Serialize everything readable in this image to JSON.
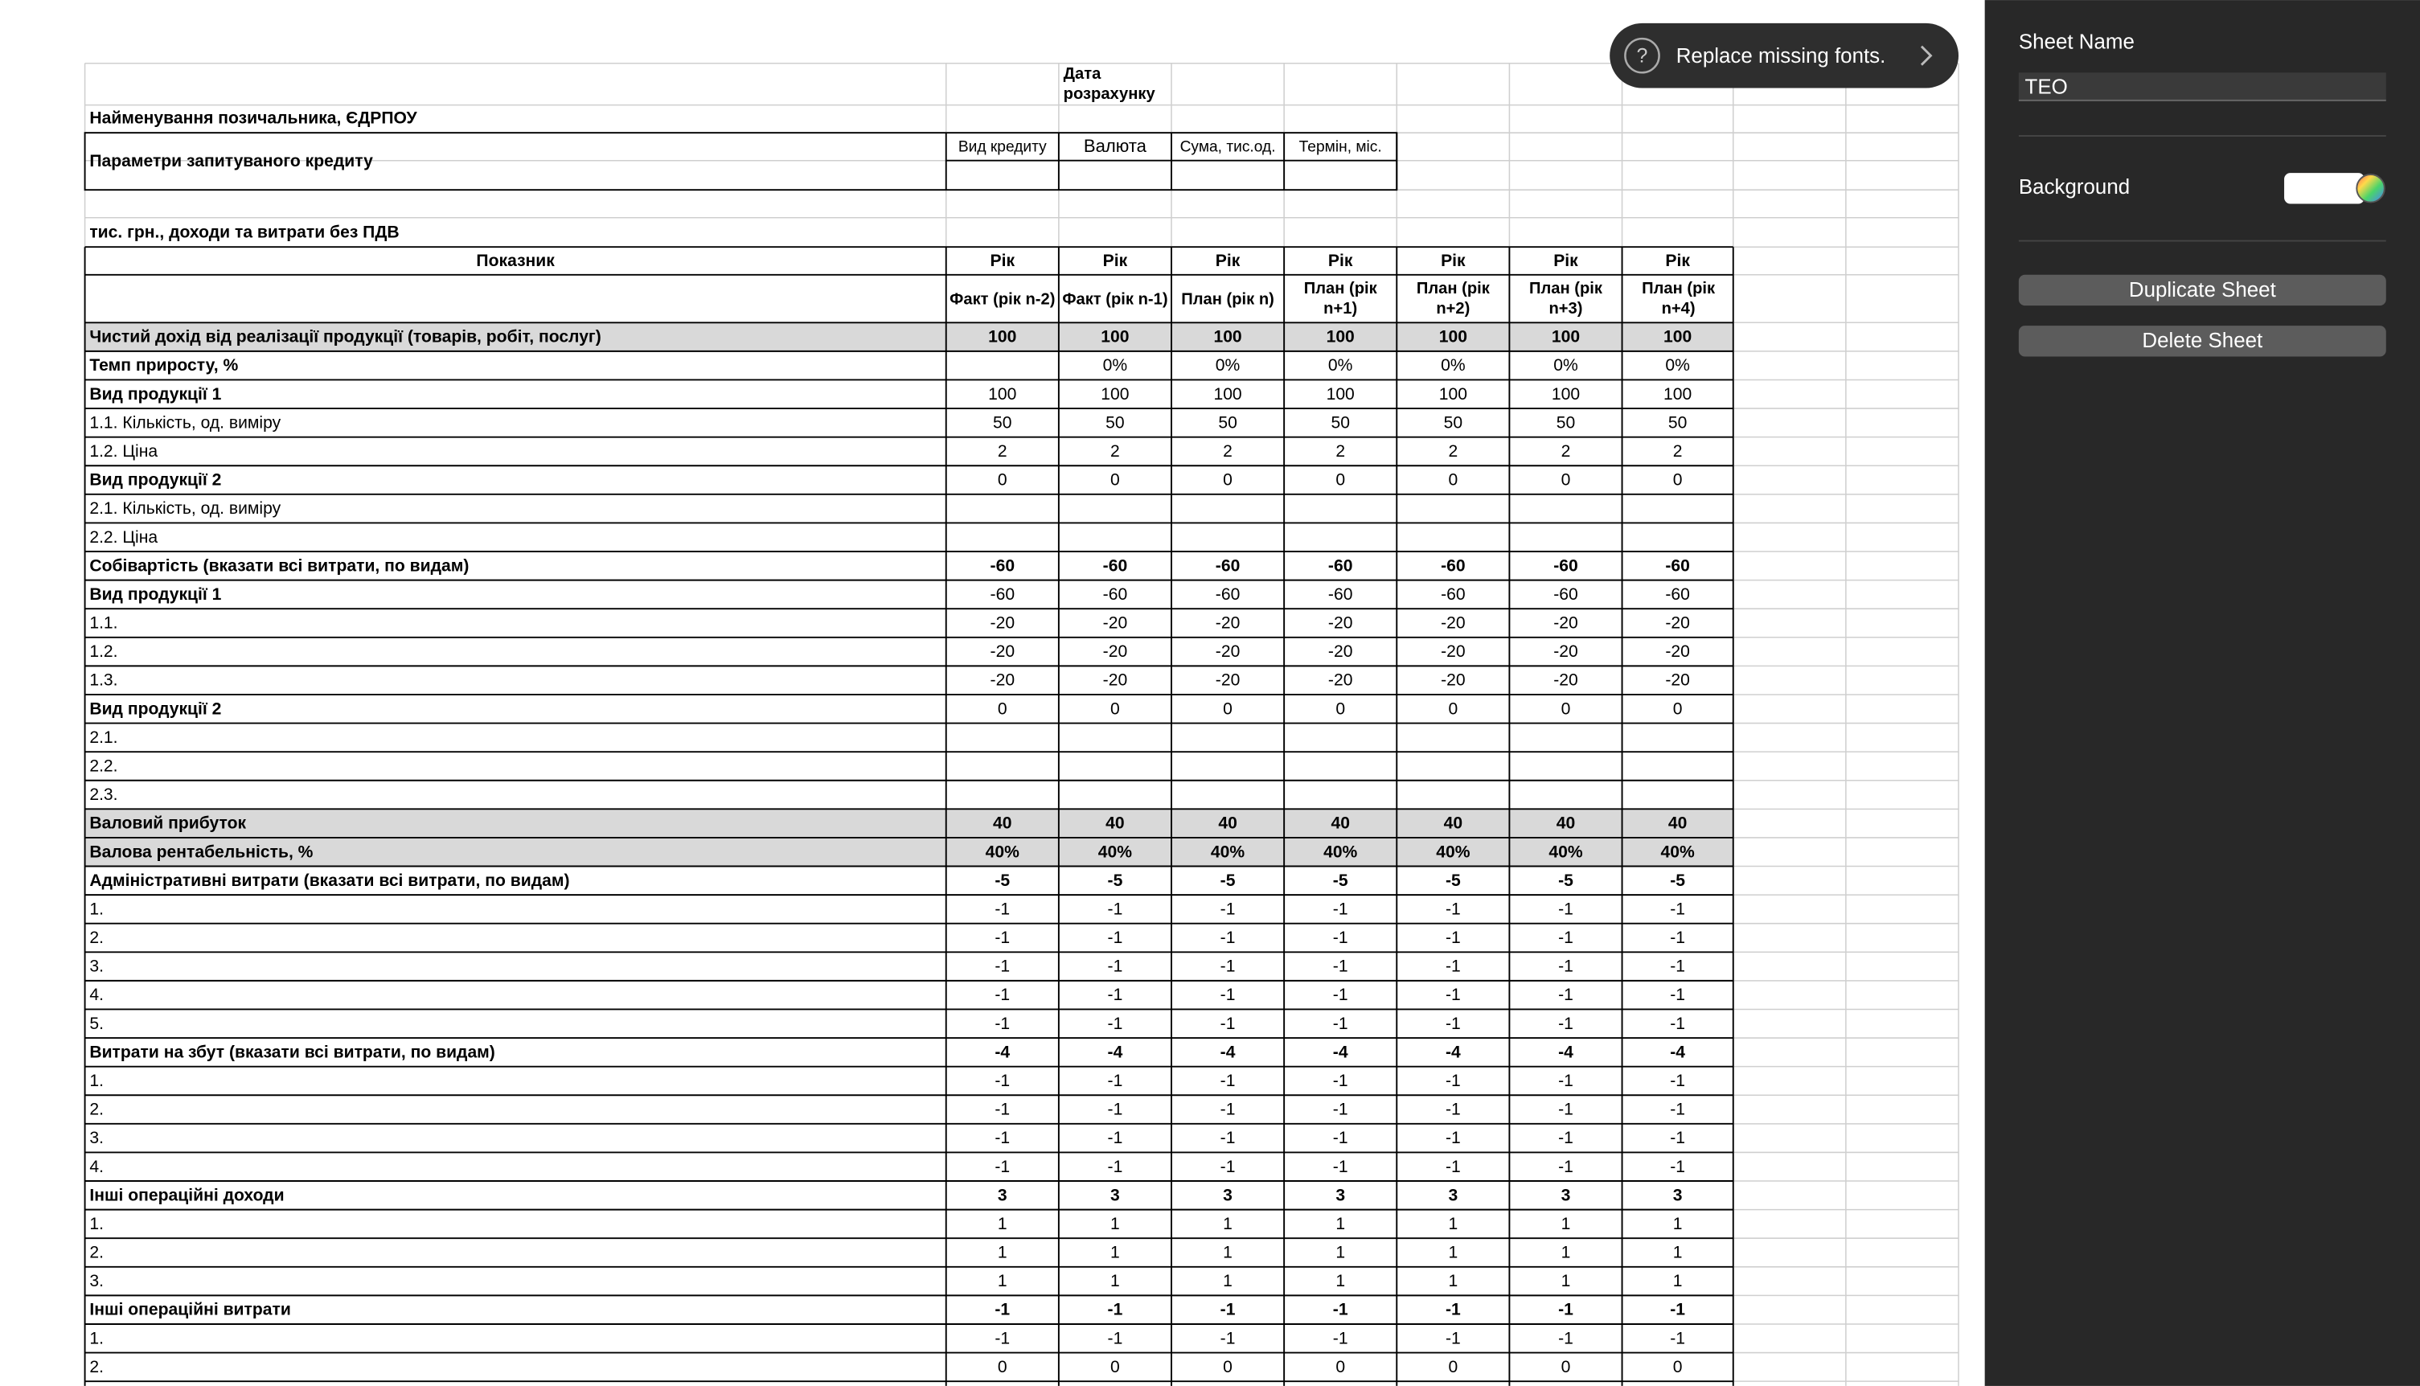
{
  "sheet": {
    "date_label": "Дата розрахунку",
    "borrower_label": "Найменування позичальника, ЄДРПОУ",
    "credit_label": "Параметри запитуваного кредиту",
    "credit_headers": [
      "Вид кредиту",
      "Валюта",
      "Сума, тис.од.",
      "Термін, міс."
    ],
    "units_note": "тис. грн., доходи та витрати без ПДВ",
    "indicator_header": "Показник",
    "year_headers": [
      "Рік",
      "Рік",
      "Рік",
      "Рік",
      "Рік",
      "Рік",
      "Рік"
    ],
    "period_headers": [
      "Факт (рік n-2)",
      "Факт (рік n-1)",
      "План (рік n)",
      "План (рік n+1)",
      "План (рік n+2)",
      "План (рік n+3)",
      "План (рік n+4)"
    ],
    "rows": [
      {
        "label": "Чистий дохід від реалізації продукції (товарів, робіт, послуг)",
        "values": [
          100,
          100,
          100,
          100,
          100,
          100,
          100
        ],
        "bold_label": true,
        "bold_values": true,
        "shaded": true
      },
      {
        "label": "Темп приросту, %",
        "values": [
          null,
          "0%",
          "0%",
          "0%",
          "0%",
          "0%",
          "0%"
        ],
        "bold_label": true
      },
      {
        "label": "Вид продукції 1",
        "values": [
          100,
          100,
          100,
          100,
          100,
          100,
          100
        ],
        "bold_label": true
      },
      {
        "label": "1.1. Кількість, од. виміру",
        "values": [
          50,
          50,
          50,
          50,
          50,
          50,
          50
        ]
      },
      {
        "label": "1.2. Ціна",
        "values": [
          2,
          2,
          2,
          2,
          2,
          2,
          2
        ]
      },
      {
        "label": "Вид продукції 2",
        "values": [
          0,
          0,
          0,
          0,
          0,
          0,
          0
        ],
        "bold_label": true
      },
      {
        "label": "2.1. Кількість, од. виміру",
        "values": [
          null,
          null,
          null,
          null,
          null,
          null,
          null
        ]
      },
      {
        "label": "2.2. Ціна",
        "values": [
          null,
          null,
          null,
          null,
          null,
          null,
          null
        ]
      },
      {
        "label": "Собівартість (вказати всі витрати, по видам)",
        "values": [
          -60,
          -60,
          -60,
          -60,
          -60,
          -60,
          -60
        ],
        "bold_label": true,
        "bold_values": true
      },
      {
        "label": "Вид продукції 1",
        "values": [
          -60,
          -60,
          -60,
          -60,
          -60,
          -60,
          -60
        ],
        "bold_label": true
      },
      {
        "label": "1.1.",
        "values": [
          -20,
          -20,
          -20,
          -20,
          -20,
          -20,
          -20
        ]
      },
      {
        "label": "1.2.",
        "values": [
          -20,
          -20,
          -20,
          -20,
          -20,
          -20,
          -20
        ]
      },
      {
        "label": "1.3.",
        "values": [
          -20,
          -20,
          -20,
          -20,
          -20,
          -20,
          -20
        ]
      },
      {
        "label": "Вид продукції 2",
        "values": [
          0,
          0,
          0,
          0,
          0,
          0,
          0
        ],
        "bold_label": true
      },
      {
        "label": "2.1.",
        "values": [
          null,
          null,
          null,
          null,
          null,
          null,
          null
        ]
      },
      {
        "label": "2.2.",
        "values": [
          null,
          null,
          null,
          null,
          null,
          null,
          null
        ]
      },
      {
        "label": "2.3.",
        "values": [
          null,
          null,
          null,
          null,
          null,
          null,
          null
        ]
      },
      {
        "label": "Валовий прибуток",
        "values": [
          40,
          40,
          40,
          40,
          40,
          40,
          40
        ],
        "bold_label": true,
        "bold_values": true,
        "shaded": true
      },
      {
        "label": "Валова рентабельність, %",
        "values": [
          "40%",
          "40%",
          "40%",
          "40%",
          "40%",
          "40%",
          "40%"
        ],
        "bold_label": true,
        "bold_values": true,
        "shaded": true
      },
      {
        "label": "Адміністративні витрати (вказати всі витрати, по видам)",
        "values": [
          -5,
          -5,
          -5,
          -5,
          -5,
          -5,
          -5
        ],
        "bold_label": true,
        "bold_values": true
      },
      {
        "label": "1.",
        "values": [
          -1,
          -1,
          -1,
          -1,
          -1,
          -1,
          -1
        ]
      },
      {
        "label": "2.",
        "values": [
          -1,
          -1,
          -1,
          -1,
          -1,
          -1,
          -1
        ]
      },
      {
        "label": "3.",
        "values": [
          -1,
          -1,
          -1,
          -1,
          -1,
          -1,
          -1
        ]
      },
      {
        "label": "4.",
        "values": [
          -1,
          -1,
          -1,
          -1,
          -1,
          -1,
          -1
        ]
      },
      {
        "label": "5.",
        "values": [
          -1,
          -1,
          -1,
          -1,
          -1,
          -1,
          -1
        ]
      },
      {
        "label": "Витрати на збут (вказати всі витрати, по видам)",
        "values": [
          -4,
          -4,
          -4,
          -4,
          -4,
          -4,
          -4
        ],
        "bold_label": true,
        "bold_values": true
      },
      {
        "label": "1.",
        "values": [
          -1,
          -1,
          -1,
          -1,
          -1,
          -1,
          -1
        ]
      },
      {
        "label": "2.",
        "values": [
          -1,
          -1,
          -1,
          -1,
          -1,
          -1,
          -1
        ]
      },
      {
        "label": "3.",
        "values": [
          -1,
          -1,
          -1,
          -1,
          -1,
          -1,
          -1
        ]
      },
      {
        "label": "4.",
        "values": [
          -1,
          -1,
          -1,
          -1,
          -1,
          -1,
          -1
        ]
      },
      {
        "label": "Інші операційні доходи",
        "values": [
          3,
          3,
          3,
          3,
          3,
          3,
          3
        ],
        "bold_label": true,
        "bold_values": true
      },
      {
        "label": "1.",
        "values": [
          1,
          1,
          1,
          1,
          1,
          1,
          1
        ]
      },
      {
        "label": "2.",
        "values": [
          1,
          1,
          1,
          1,
          1,
          1,
          1
        ]
      },
      {
        "label": "3.",
        "values": [
          1,
          1,
          1,
          1,
          1,
          1,
          1
        ]
      },
      {
        "label": "Інші операційні витрати",
        "values": [
          -1,
          -1,
          -1,
          -1,
          -1,
          -1,
          -1
        ],
        "bold_label": true,
        "bold_values": true
      },
      {
        "label": "1.",
        "values": [
          -1,
          -1,
          -1,
          -1,
          -1,
          -1,
          -1
        ]
      },
      {
        "label": "2.",
        "values": [
          0,
          0,
          0,
          0,
          0,
          0,
          0
        ]
      }
    ]
  },
  "toast": {
    "icon": "?",
    "text": "Replace missing fonts."
  },
  "sidebar": {
    "sheet_name_label": "Sheet Name",
    "sheet_name": "TEO",
    "background_label": "Background",
    "buttons": [
      "Duplicate Sheet",
      "Delete Sheet"
    ]
  }
}
